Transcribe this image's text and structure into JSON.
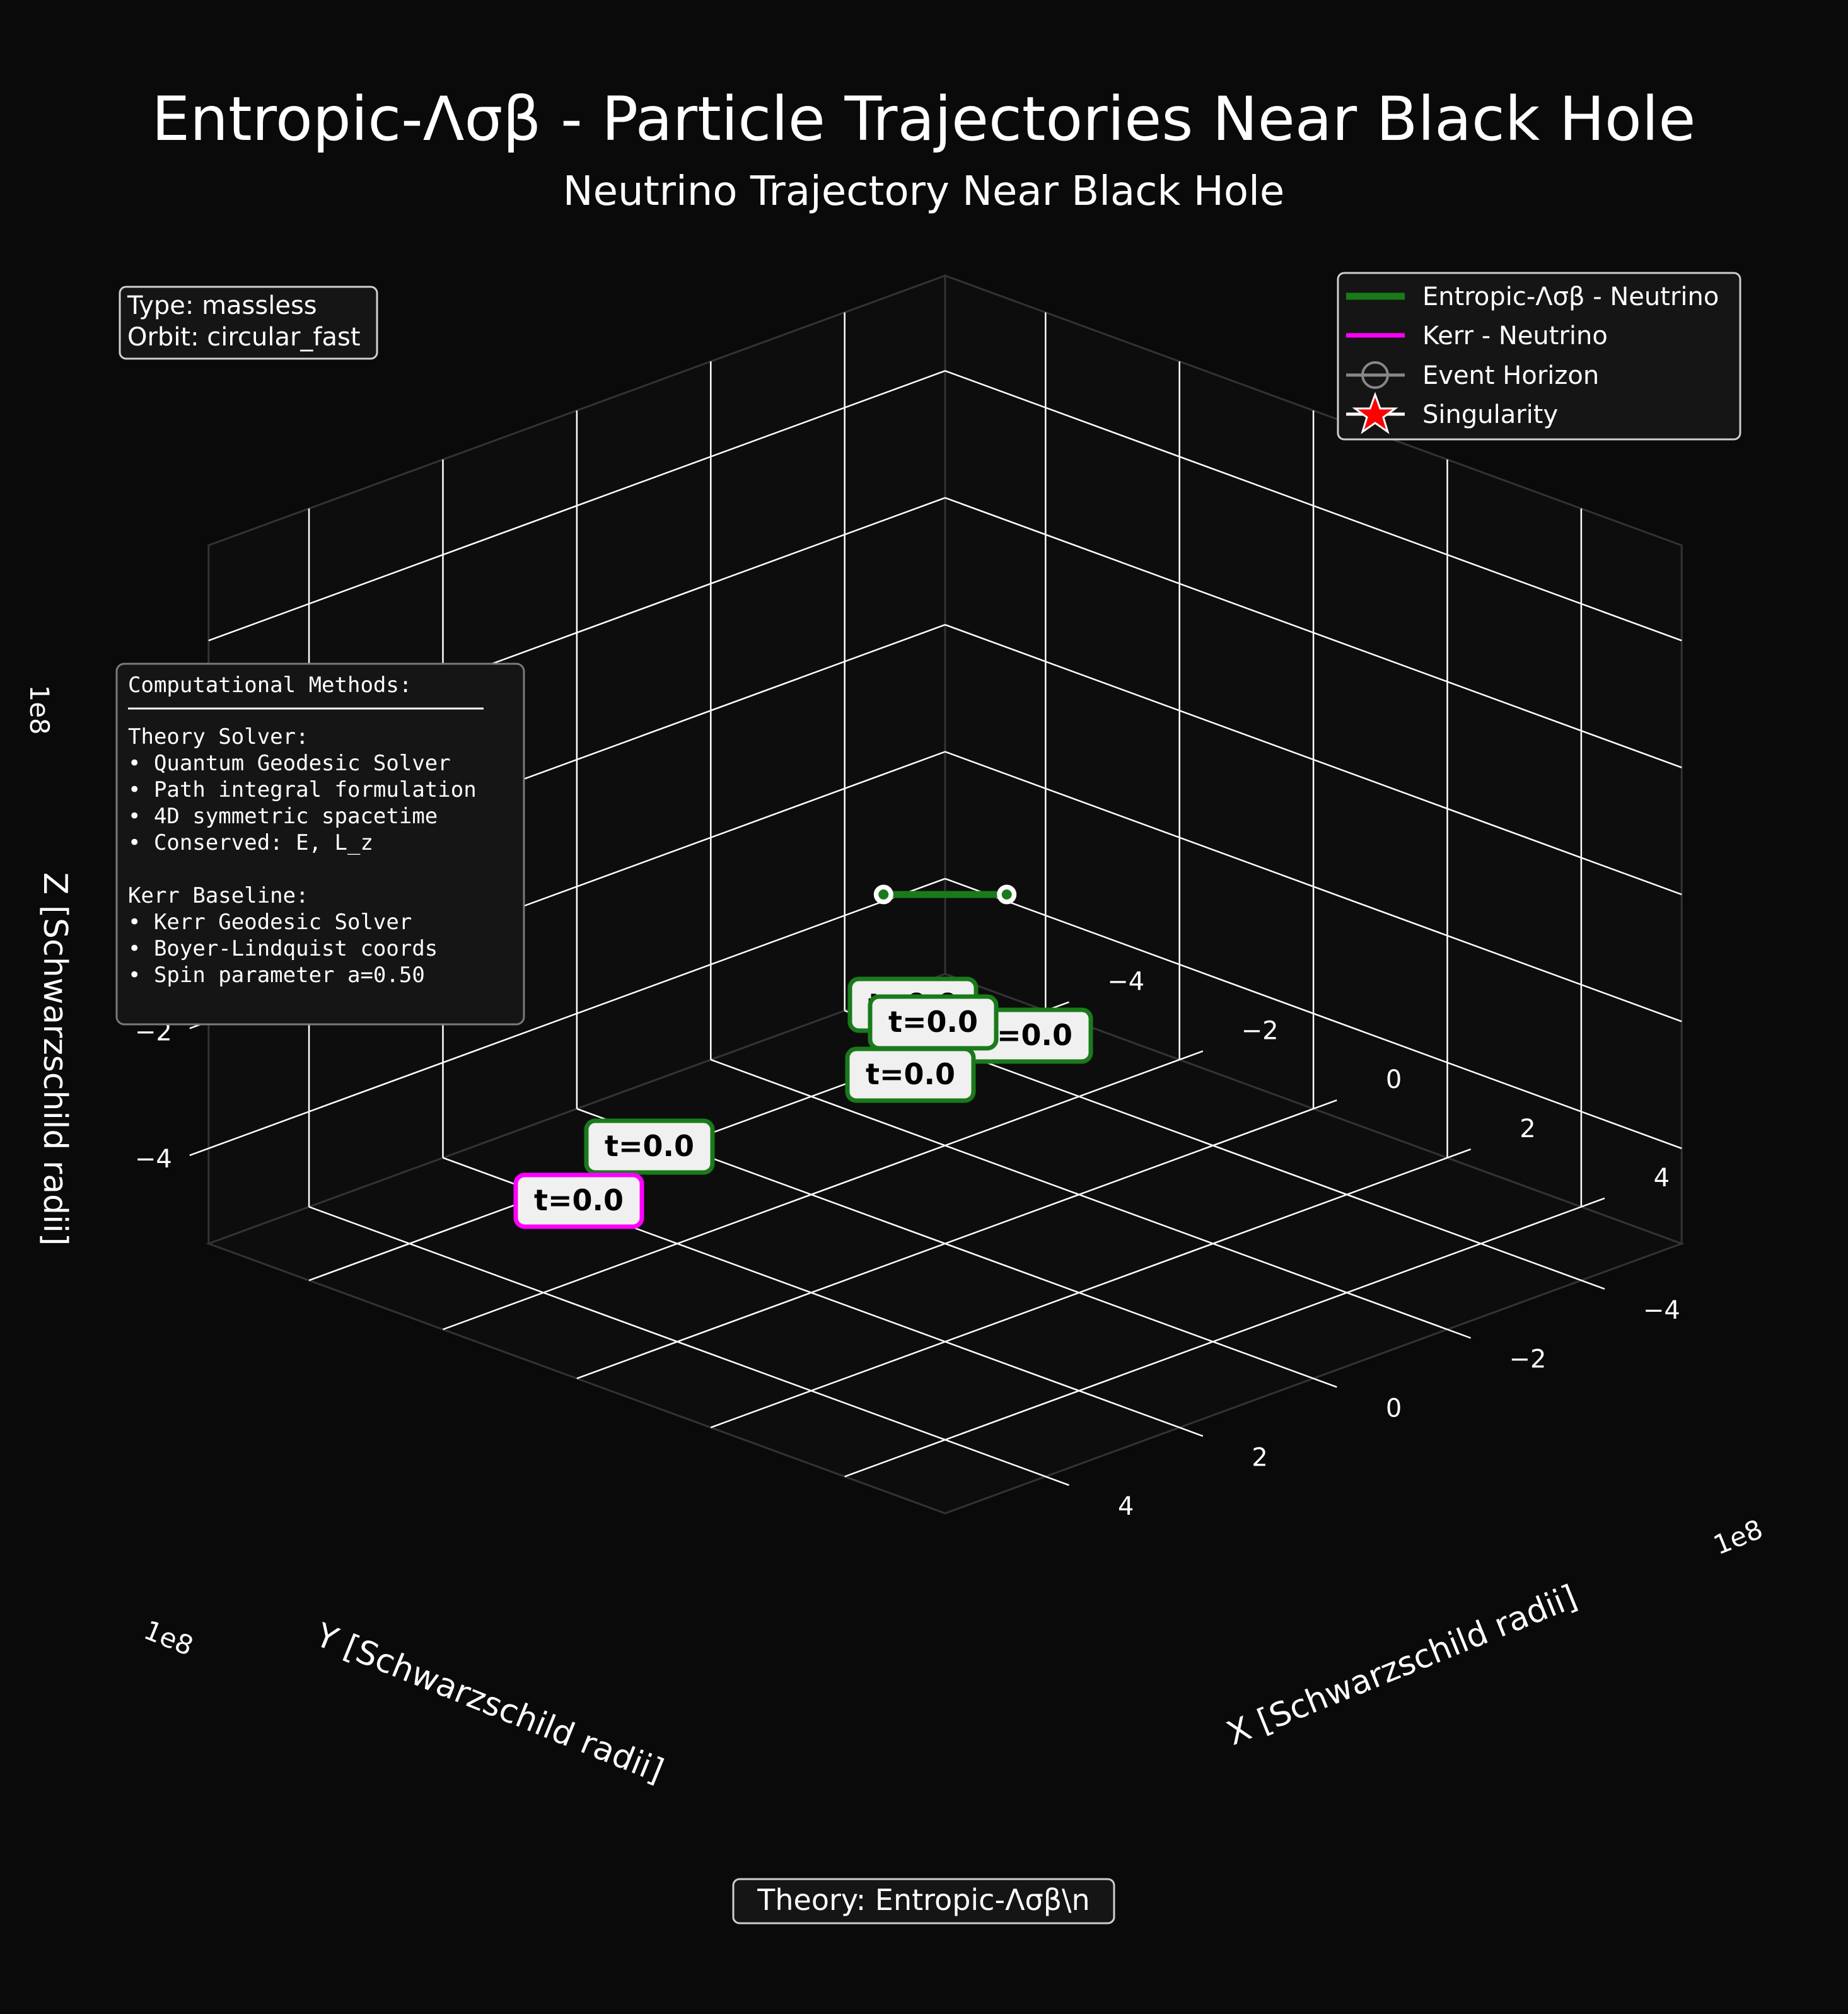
{
  "figure": {
    "suptitle": "Entropic-Λσβ - Particle Trajectories Near Black Hole",
    "title": "Neutrino Trajectory Near Black Hole",
    "background": "#0a0a0a"
  },
  "info_box": {
    "lines": [
      "Type: massless",
      "Orbit: circular_fast"
    ]
  },
  "methods_box": {
    "heading": "Computational Methods:",
    "rule": "───────────────────────",
    "lines": [
      "Theory Solver:",
      "• Quantum Geodesic Solver",
      "• Path integral formulation",
      "• 4D symmetric spacetime",
      "• Conserved: E, L_z",
      "",
      "Kerr Baseline:",
      "• Kerr Geodesic Solver",
      "• Boyer-Lindquist coords",
      "• Spin parameter a=0.50"
    ]
  },
  "footer": {
    "text": "Theory: Entropic-Λσβ\\n"
  },
  "legend": {
    "entries": [
      {
        "label": "Entropic-Λσβ - Neutrino",
        "kind": "line",
        "color": "#1a7a1a"
      },
      {
        "label": "Kerr - Neutrino",
        "kind": "line",
        "color": "#ff00ff"
      },
      {
        "label": "Event Horizon",
        "kind": "circle-line",
        "color": "#888888"
      },
      {
        "label": "Singularity",
        "kind": "star",
        "color": "#ff0000"
      }
    ]
  },
  "chart_data": {
    "type": "scatter",
    "projection": "3d",
    "x_axis": {
      "label": "X [Schwarzschild radii]",
      "ticks": [
        -4,
        -2,
        0,
        2,
        4
      ],
      "tick_labels": [
        "−4",
        "−2",
        "0",
        "2",
        "4"
      ],
      "scale_label": "1e8",
      "range": [
        -5.5,
        5.5
      ]
    },
    "y_axis": {
      "label": "Y [Schwarzschild radii]",
      "ticks": [
        -4,
        -2,
        0,
        2,
        4
      ],
      "tick_labels": [
        "−4",
        "−2",
        "0",
        "2",
        "4"
      ],
      "scale_label": "1e8",
      "range": [
        -5.5,
        5.5
      ]
    },
    "z_axis": {
      "label": "Z [Schwarzschild radii]",
      "ticks": [
        -4,
        -2,
        0
      ],
      "tick_labels": [
        "−4",
        "−2",
        "0"
      ],
      "scale_label": "1e8",
      "range": [
        -5.5,
        5.5
      ]
    },
    "grid": true,
    "series": [
      {
        "name": "Entropic-Λσβ - Neutrino",
        "color": "#1a7a1a",
        "points": [
          [
            0.46,
            -0.46,
            0
          ],
          [
            -0.46,
            0.46,
            0
          ]
        ],
        "start_markers": [
          [
            0.46,
            -0.46,
            0
          ],
          [
            -0.46,
            0.46,
            0
          ]
        ]
      },
      {
        "name": "Kerr - Neutrino",
        "color": "#ff00ff",
        "points": []
      }
    ],
    "annotations": [
      {
        "text": "t=0.0",
        "border": "#1a7a1a",
        "anchor": "b1"
      },
      {
        "text": "t=0.0",
        "border": "#1a7a1a",
        "anchor": "b2"
      },
      {
        "text": "t=0.0",
        "border": "#1a7a1a",
        "anchor": "b3"
      },
      {
        "text": "t=0.0",
        "border": "#1a7a1a",
        "anchor": "b4"
      },
      {
        "text": "t=0.0",
        "border": "#1a7a1a",
        "anchor": "b5"
      },
      {
        "text": "t=0.0",
        "border": "#ff00ff",
        "anchor": "b6"
      }
    ]
  }
}
